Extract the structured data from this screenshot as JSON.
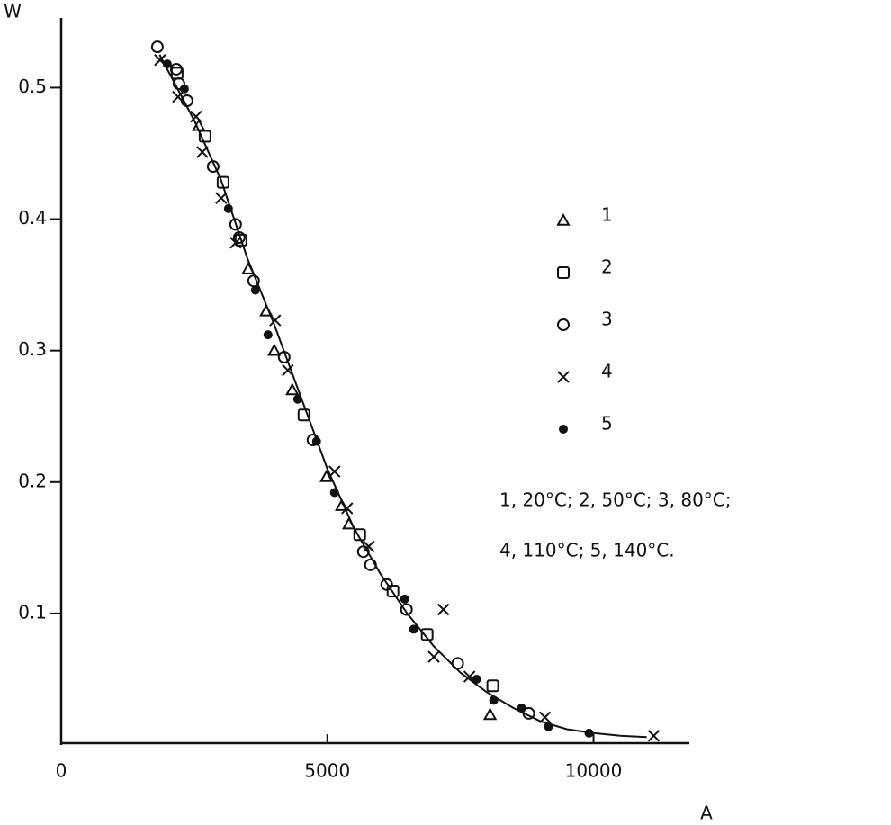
{
  "chart_data": {
    "type": "scatter",
    "x_label": "A",
    "y_label": "W",
    "xlim": [
      0,
      11800
    ],
    "ylim": [
      0,
      0.553
    ],
    "xticks": [
      0,
      5000,
      10000
    ],
    "yticks": [
      0.1,
      0.2,
      0.3,
      0.4,
      0.5
    ],
    "note": [
      "1, 20°C; 2, 50°C; 3, 80°C;",
      "4, 110°C; 5, 140°C."
    ],
    "series": [
      {
        "name": "1",
        "marker": "triangle",
        "color": "#111111",
        "x": [
          2584,
          3514,
          3851,
          4003,
          4341,
          4983,
          5270,
          5405,
          8057
        ],
        "values": [
          0.471,
          0.362,
          0.33,
          0.3,
          0.27,
          0.204,
          0.182,
          0.168,
          0.023
        ]
      },
      {
        "name": "2",
        "marker": "square",
        "color": "#111111",
        "x": [
          2179,
          2703,
          3041,
          3378,
          4561,
          5608,
          6233,
          6875,
          8108
        ],
        "values": [
          0.511,
          0.463,
          0.428,
          0.384,
          0.251,
          0.16,
          0.117,
          0.084,
          0.045
        ]
      },
      {
        "name": "3",
        "marker": "circle",
        "color": "#111111",
        "x": [
          1807,
          2162,
          2213,
          2365,
          2855,
          3277,
          3345,
          3615,
          4189,
          4730,
          5676,
          5811,
          6115,
          6486,
          7449,
          8784
        ],
        "values": [
          0.531,
          0.514,
          0.503,
          0.49,
          0.44,
          0.396,
          0.386,
          0.353,
          0.295,
          0.232,
          0.147,
          0.137,
          0.122,
          0.103,
          0.062,
          0.024
        ]
      },
      {
        "name": "4",
        "marker": "x",
        "color": "#111111",
        "x": [
          1858,
          2196,
          2534,
          2652,
          3007,
          3277,
          4020,
          4257,
          5135,
          5372,
          5777,
          7179,
          7000,
          7669,
          9088,
          11132
        ],
        "values": [
          0.521,
          0.493,
          0.478,
          0.451,
          0.416,
          0.382,
          0.323,
          0.285,
          0.208,
          0.18,
          0.151,
          0.103,
          0.067,
          0.052,
          0.021,
          0.007
        ]
      },
      {
        "name": "5",
        "marker": "dot",
        "color": "#111111",
        "x": [
          1993,
          2314,
          3142,
          3649,
          3885,
          4443,
          4797,
          5135,
          6453,
          6622,
          7804,
          8125,
          8649,
          9155,
          9916
        ],
        "values": [
          0.518,
          0.499,
          0.408,
          0.346,
          0.312,
          0.263,
          0.231,
          0.192,
          0.111,
          0.088,
          0.05,
          0.034,
          0.028,
          0.014,
          0.009
        ]
      }
    ],
    "curve": {
      "color": "#111111",
      "x": [
        1850,
        2500,
        3000,
        3500,
        4000,
        4500,
        5000,
        5500,
        6000,
        6500,
        7000,
        7500,
        8000,
        8500,
        9000,
        9500,
        10000,
        10500,
        11000
      ],
      "values": [
        0.525,
        0.475,
        0.43,
        0.37,
        0.32,
        0.265,
        0.21,
        0.165,
        0.13,
        0.1,
        0.075,
        0.055,
        0.04,
        0.028,
        0.018,
        0.012,
        0.009,
        0.007,
        0.006
      ]
    }
  }
}
